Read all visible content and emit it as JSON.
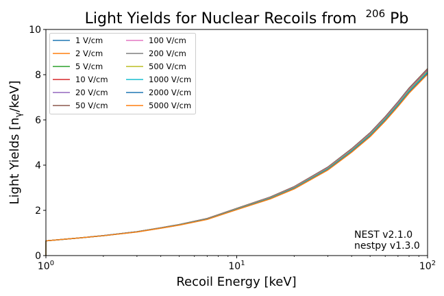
{
  "chart_data": {
    "type": "line",
    "title": "Light Yields for Nuclear Recoils from",
    "title_isotope_mass": "206",
    "title_element": "Pb",
    "xlabel": "Recoil Energy [keV]",
    "ylabel_main": "Light Yields [n",
    "ylabel_sub": "γ",
    "ylabel_tail": "/keV]",
    "xscale": "log",
    "xlim": [
      1,
      100
    ],
    "ylim": [
      0,
      10
    ],
    "grid": false,
    "x_ticks": [
      {
        "value": 1,
        "base": "10",
        "exp": "0"
      },
      {
        "value": 10,
        "base": "10",
        "exp": "1"
      },
      {
        "value": 100,
        "base": "10",
        "exp": "2"
      }
    ],
    "y_ticks": [
      0,
      2,
      4,
      6,
      8,
      10
    ],
    "legend": {
      "placement": "top-left",
      "columns": 2
    },
    "annotation": [
      "NEST v2.1.0",
      "nestpy v1.3.0"
    ],
    "annotation_placement": "bottom-right",
    "x": [
      1,
      1.5,
      2,
      3,
      4,
      5,
      7,
      10,
      15,
      20,
      30,
      40,
      50,
      60,
      70,
      80,
      90,
      100
    ],
    "base_curve": [
      0.65,
      0.78,
      0.88,
      1.05,
      1.22,
      1.36,
      1.62,
      2.06,
      2.55,
      3.0,
      3.85,
      4.65,
      5.35,
      6.05,
      6.7,
      7.3,
      7.75,
      8.15
    ],
    "series": [
      {
        "name": "1 V/cm",
        "color": "#1f77b4",
        "offset_at_100": 0.12
      },
      {
        "name": "2 V/cm",
        "color": "#ff7f0e",
        "offset_at_100": 0.11
      },
      {
        "name": "5 V/cm",
        "color": "#2ca02c",
        "offset_at_100": 0.1
      },
      {
        "name": "10 V/cm",
        "color": "#d62728",
        "offset_at_100": 0.09
      },
      {
        "name": "20 V/cm",
        "color": "#9467bd",
        "offset_at_100": 0.08
      },
      {
        "name": "50 V/cm",
        "color": "#8c564b",
        "offset_at_100": 0.06
      },
      {
        "name": "100 V/cm",
        "color": "#e377c2",
        "offset_at_100": 0.04
      },
      {
        "name": "200 V/cm",
        "color": "#7f7f7f",
        "offset_at_100": 0.02
      },
      {
        "name": "500 V/cm",
        "color": "#bcbd22",
        "offset_at_100": -0.01
      },
      {
        "name": "1000 V/cm",
        "color": "#17becf",
        "offset_at_100": -0.04
      },
      {
        "name": "2000 V/cm",
        "color": "#1f77b4",
        "offset_at_100": -0.08
      },
      {
        "name": "5000 V/cm",
        "color": "#ff7f0e",
        "offset_at_100": -0.13
      }
    ]
  }
}
